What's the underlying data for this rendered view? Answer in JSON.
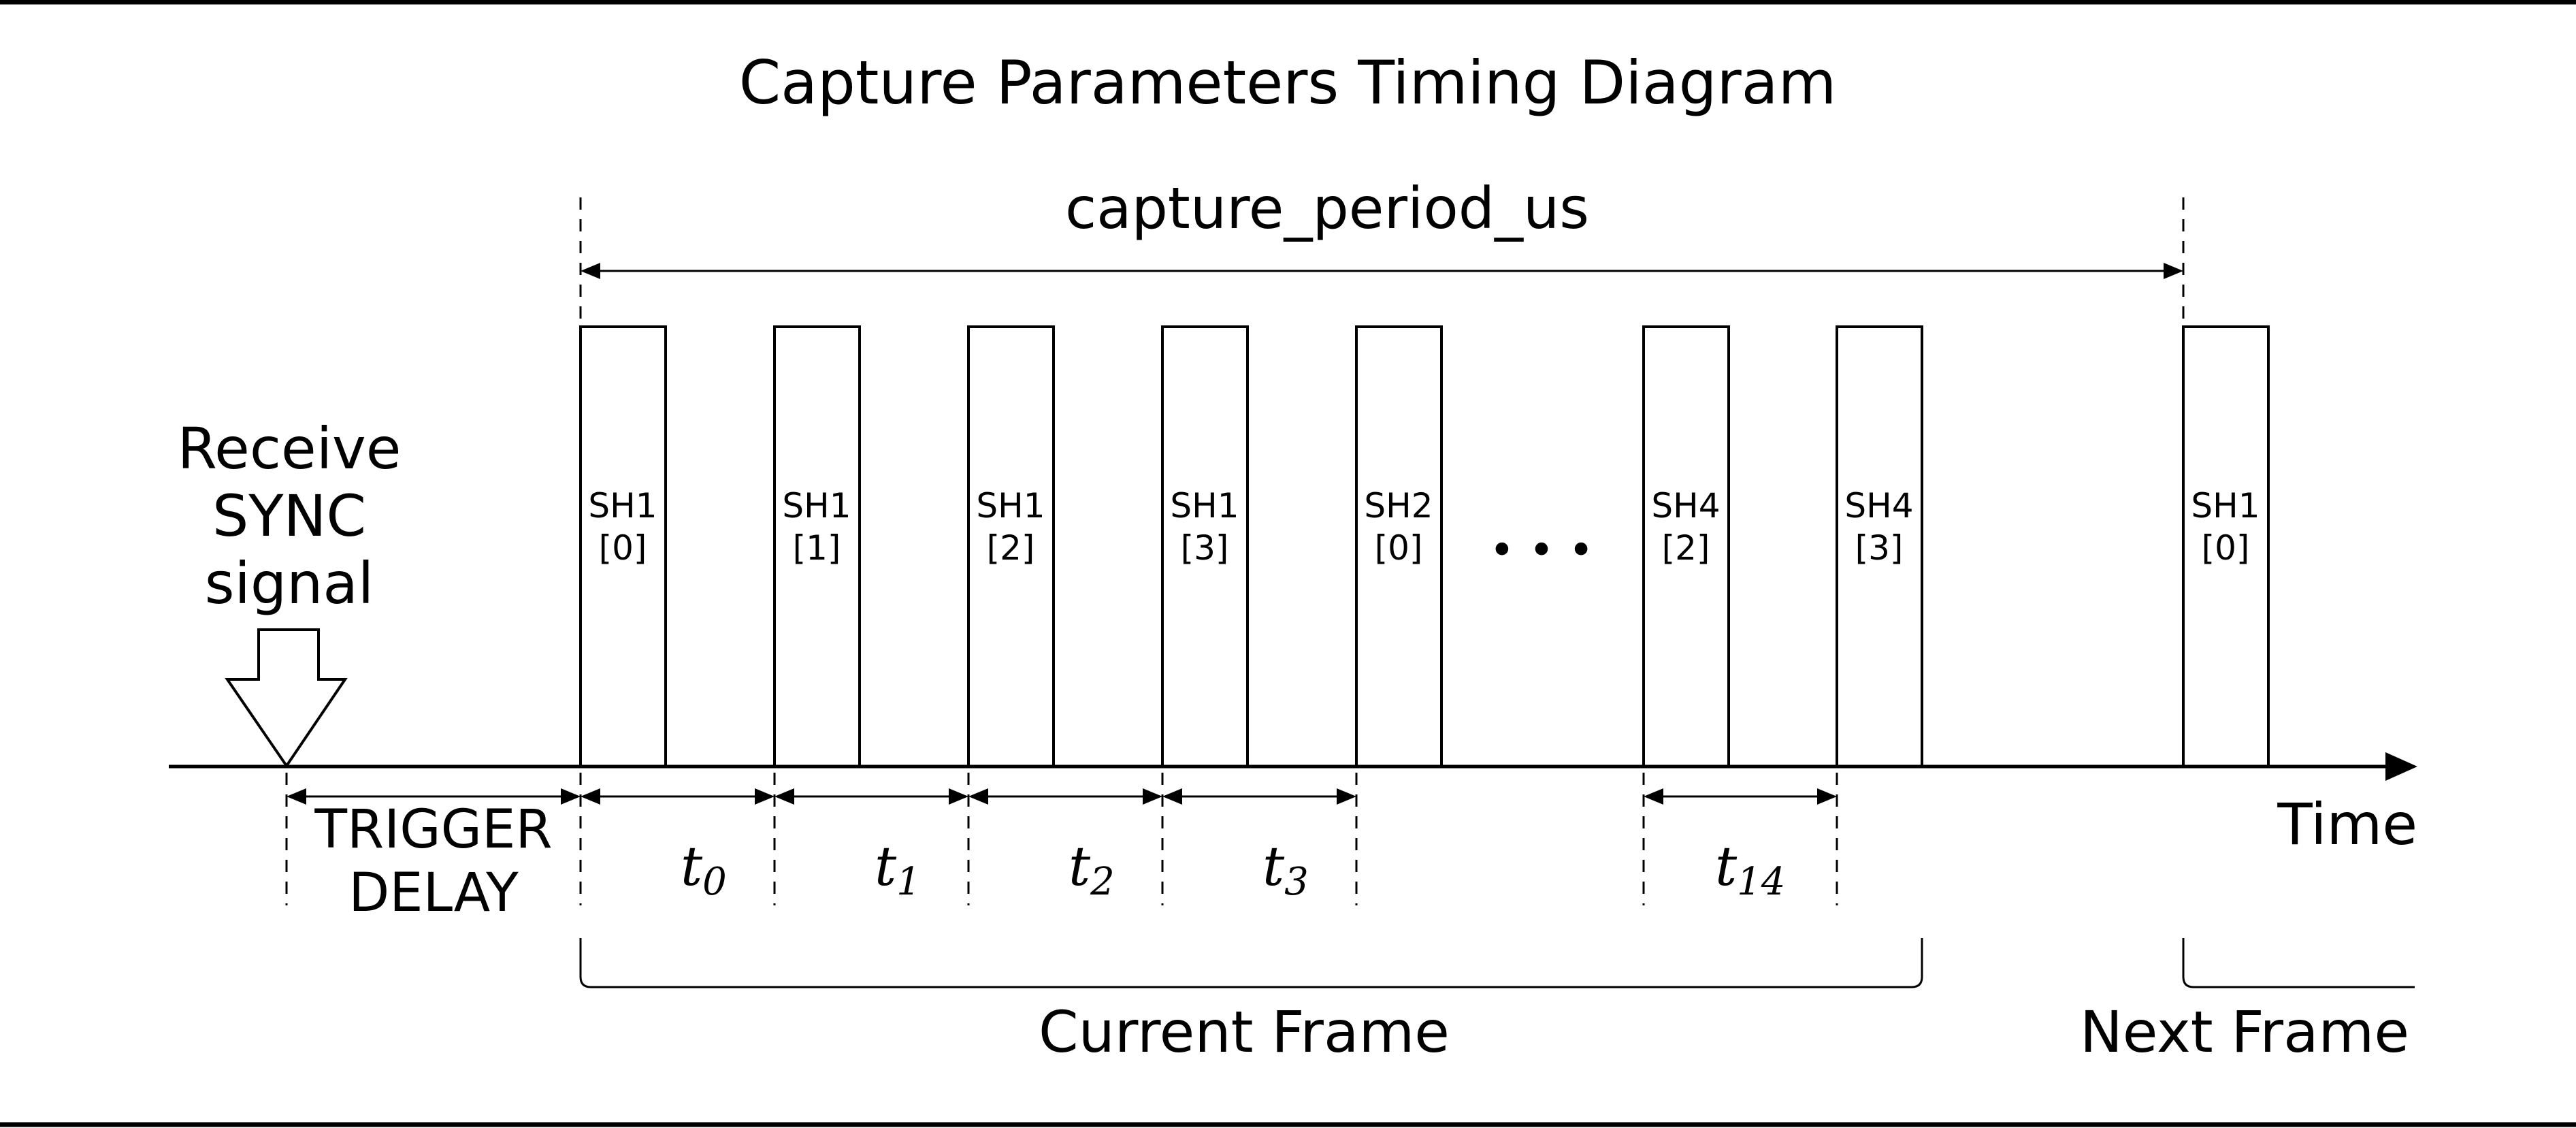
{
  "title": "Capture Parameters Timing Diagram",
  "period_label": "capture_period_us",
  "sync_label": [
    "Receive",
    "SYNC",
    "signal"
  ],
  "trigger_label": [
    "TRIGGER",
    "DELAY"
  ],
  "time_label": "Time",
  "ellipsis": "• • •",
  "pulses": [
    {
      "line1": "SH1",
      "line2": "[0]"
    },
    {
      "line1": "SH1",
      "line2": "[1]"
    },
    {
      "line1": "SH1",
      "line2": "[2]"
    },
    {
      "line1": "SH1",
      "line2": "[3]"
    },
    {
      "line1": "SH2",
      "line2": "[0]"
    },
    {
      "line1": "SH4",
      "line2": "[2]"
    },
    {
      "line1": "SH4",
      "line2": "[3]"
    },
    {
      "line1": "SH1",
      "line2": "[0]"
    }
  ],
  "intervals": [
    {
      "base": "t",
      "sub": "0"
    },
    {
      "base": "t",
      "sub": "1"
    },
    {
      "base": "t",
      "sub": "2"
    },
    {
      "base": "t",
      "sub": "3"
    },
    {
      "base": "t",
      "sub": "14"
    }
  ],
  "frames": {
    "current": "Current Frame",
    "next": "Next Frame"
  }
}
